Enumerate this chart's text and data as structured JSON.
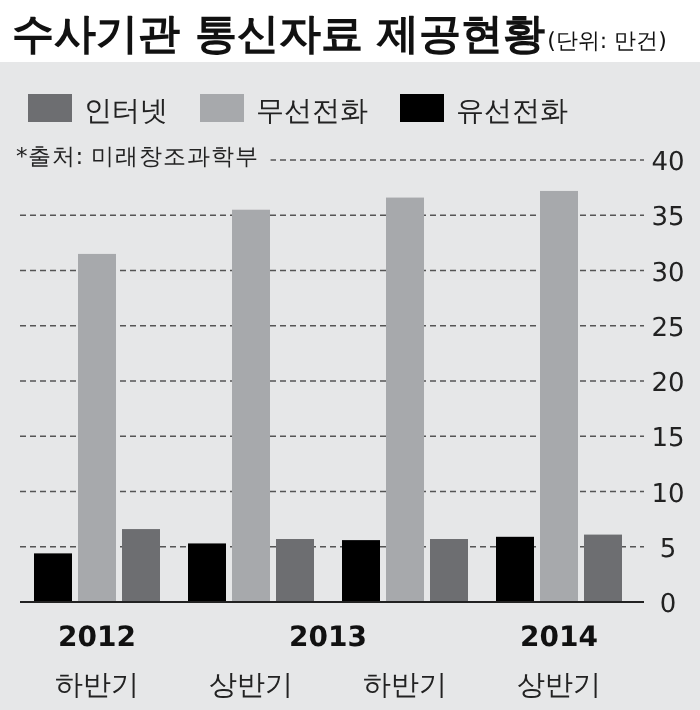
{
  "chart_data": {
    "type": "bar",
    "title": "수사기관 통신자료 제공현황",
    "subtitle": "(단위: 만건)",
    "categories": [
      "하반기",
      "상반기",
      "하반기",
      "상반기"
    ],
    "series": [
      {
        "name": "유선전화",
        "color": "#000000",
        "values": [
          4.4,
          5.3,
          5.6,
          5.9
        ]
      },
      {
        "name": "무선전화",
        "color": "#a7a9ac",
        "values": [
          31.5,
          35.5,
          36.6,
          37.2
        ]
      },
      {
        "name": "인터넷",
        "color": "#6d6e71",
        "values": [
          6.6,
          5.7,
          5.7,
          6.1
        ]
      }
    ],
    "ylim": [
      0,
      40
    ],
    "yticks": [
      0,
      5,
      10,
      15,
      20,
      25,
      30,
      35,
      40
    ],
    "grid": "y",
    "legend": "top left",
    "annotations": [
      "*출처: 미래창조과학부",
      "2012",
      "2013",
      "2014"
    ]
  }
}
